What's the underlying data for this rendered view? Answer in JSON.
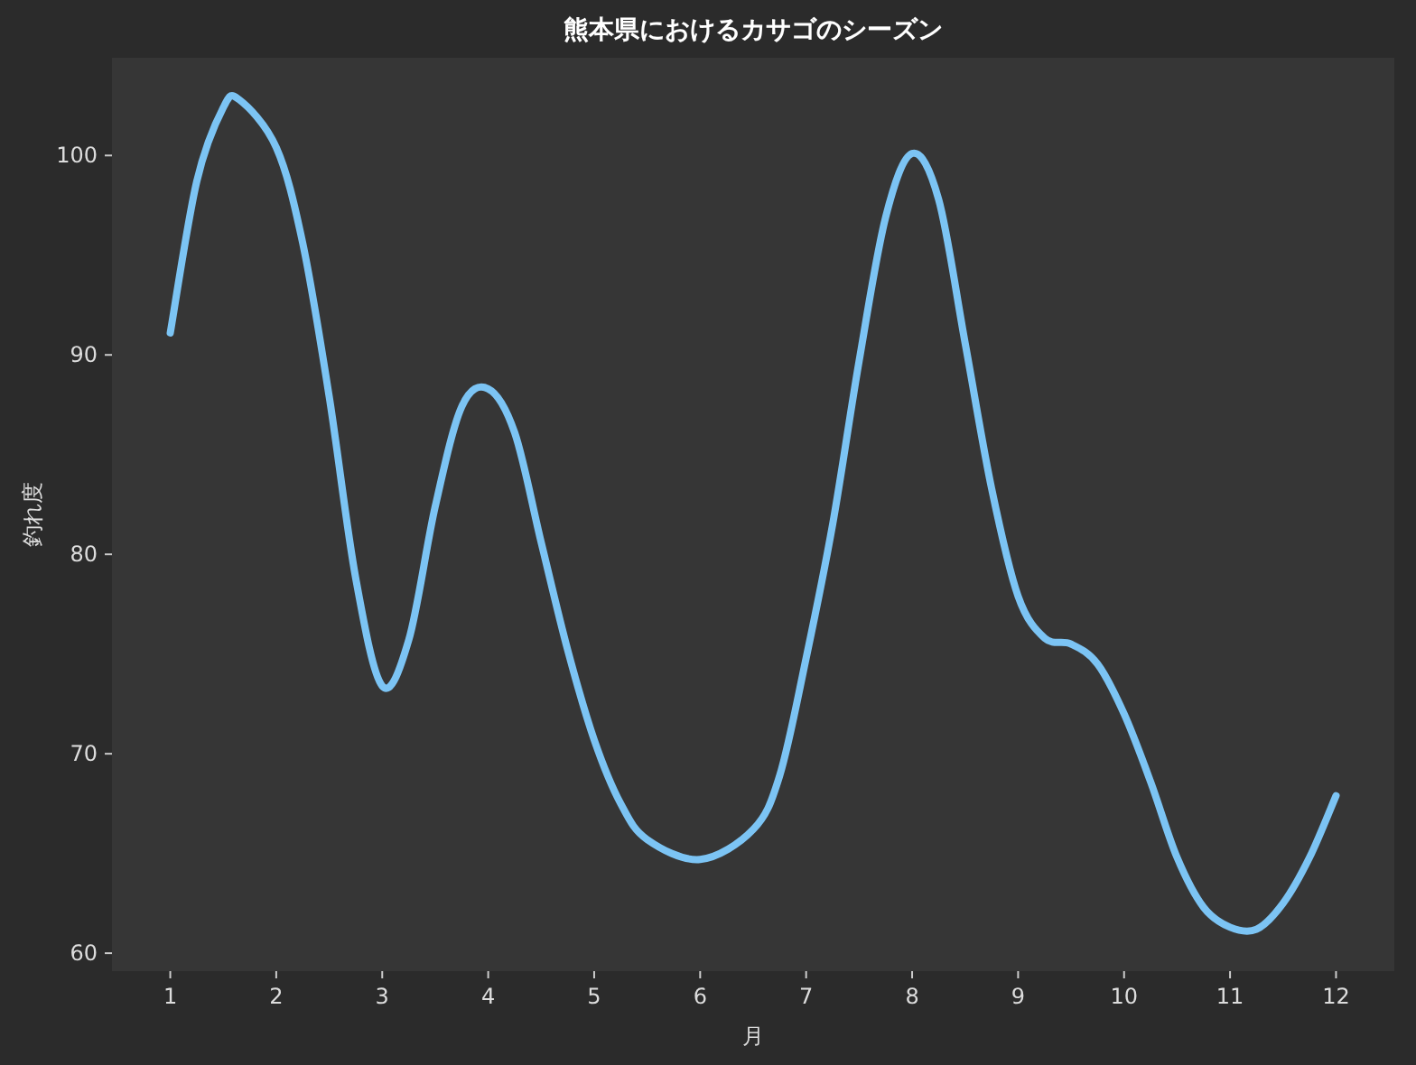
{
  "chart_data": {
    "type": "line",
    "title": "熊本県におけるカサゴのシーズン",
    "xlabel": "月",
    "ylabel": "釣れ度",
    "x": [
      1,
      1.25,
      1.5,
      1.65,
      2,
      2.25,
      2.5,
      2.75,
      3,
      3.25,
      3.5,
      3.75,
      4,
      4.25,
      4.5,
      4.75,
      5,
      5.25,
      5.5,
      6,
      6.5,
      6.75,
      7,
      7.25,
      7.5,
      7.75,
      8,
      8.25,
      8.5,
      8.75,
      9,
      9.25,
      9.5,
      9.75,
      10,
      10.25,
      10.5,
      10.75,
      11,
      11.25,
      11.5,
      11.75,
      12
    ],
    "values": [
      91.1,
      98.7,
      102.4,
      102.8,
      100.4,
      95.6,
      87.9,
      78.8,
      73.4,
      75.7,
      82.4,
      87.4,
      88.3,
      86.1,
      80.6,
      75.2,
      70.7,
      67.5,
      65.7,
      64.7,
      66.2,
      68.9,
      74.8,
      81.5,
      89.7,
      96.9,
      100.1,
      97.8,
      90.6,
      83.3,
      77.9,
      75.8,
      75.5,
      74.5,
      72.0,
      68.6,
      64.8,
      62.3,
      61.3,
      61.2,
      62.5,
      64.8,
      67.9
    ],
    "color": "#7cc4f4",
    "xlim": [
      0.45,
      12.55
    ],
    "ylim": [
      59.1,
      104.9
    ],
    "xticks": [
      1,
      2,
      3,
      4,
      5,
      6,
      7,
      8,
      9,
      10,
      11,
      12
    ],
    "yticks": [
      60,
      70,
      80,
      90,
      100
    ]
  }
}
